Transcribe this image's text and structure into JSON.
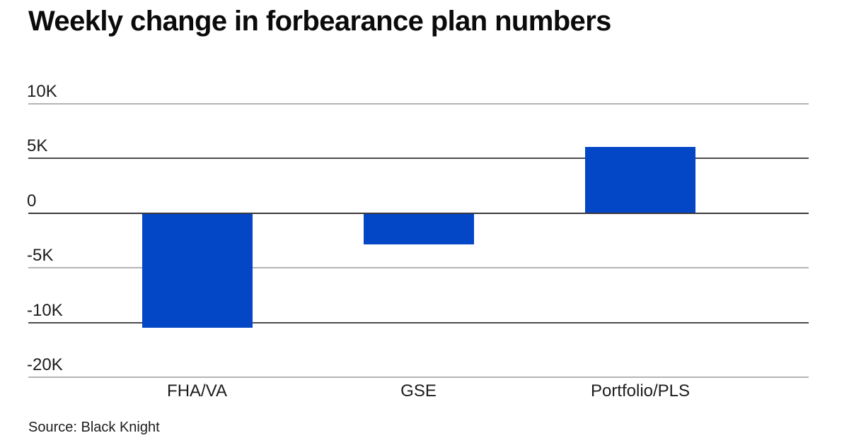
{
  "title": "Weekly change in forbearance plan numbers",
  "source_note": "Source: Black Knight",
  "colors": {
    "bar_blue": "#0346c6",
    "grid_light": "#b4b4b6",
    "grid_dark": "#4c4c4e",
    "zero_line": "#39393b",
    "title_text": "#0b0b0b",
    "label_text": "#1c1c1c"
  },
  "chart_data": {
    "type": "bar",
    "title": "Weekly change in forbearance plan numbers",
    "categories": [
      "FHA/VA",
      "GSE",
      "Portfolio/PLS"
    ],
    "values": [
      -10400,
      -2800,
      6000
    ],
    "xlabel": "",
    "ylabel": "",
    "y_ticks": [
      {
        "label": "10K",
        "value": 10000,
        "line_style": "light"
      },
      {
        "label": "5K",
        "value": 5000,
        "line_style": "dark"
      },
      {
        "label": "0",
        "value": 0,
        "line_style": "zero"
      },
      {
        "label": "-5K",
        "value": -5000,
        "line_style": "light"
      },
      {
        "label": "-10K",
        "value": -10000,
        "line_style": "dark"
      },
      {
        "label": "-20K",
        "value": -20000,
        "line_style": "light"
      }
    ],
    "value_per_gridline_step": 5000,
    "grid": true,
    "legend": "none"
  }
}
